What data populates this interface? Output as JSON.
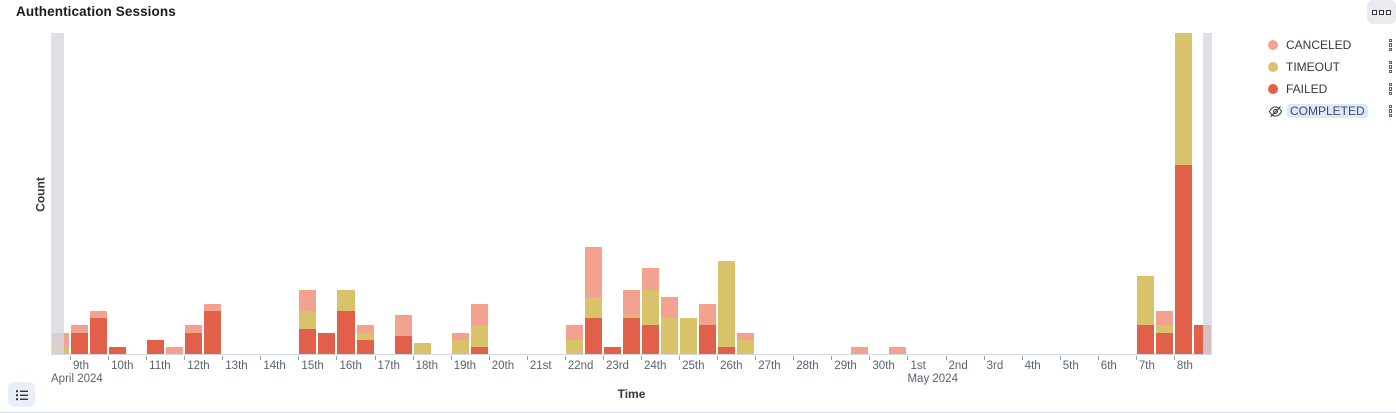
{
  "panel": {
    "title": "Authentication Sessions",
    "menu_icon": "boxes-horizontal-icon",
    "legend_toggle_icon": "list-icon"
  },
  "legend": {
    "items": [
      {
        "label": "CANCELED",
        "color": "#F2A28E",
        "hidden": false
      },
      {
        "label": "TIMEOUT",
        "color": "#D9C36A",
        "hidden": false
      },
      {
        "label": "FAILED",
        "color": "#E2604A",
        "hidden": false
      },
      {
        "label": "COMPLETED",
        "color": null,
        "hidden": true
      }
    ],
    "item_action_icon": "kebab-dots-icon",
    "hidden_item_icon": "eye-slash-icon",
    "hidden_highlight_color": "#DFE9F6"
  },
  "chart_data": {
    "type": "bar",
    "stacked": true,
    "title": "Authentication Sessions",
    "xlabel": "Time",
    "ylabel": "Count",
    "ylim": [
      0,
      90
    ],
    "grid": false,
    "legend_position": "right",
    "x_axis": {
      "origin": "2024-04-08 00:00",
      "start_day": 0.5,
      "end_day": 31,
      "bucket_interval_hours": 12
    },
    "series_colors": {
      "CANCELED": "#F2A28E",
      "TIMEOUT": "#D9C36A",
      "FAILED": "#E2604A"
    },
    "stack_order_bottom_to_top": [
      "FAILED",
      "TIMEOUT",
      "CANCELED"
    ],
    "partial_bucket_color": "#E0E1E6",
    "partial_markers": [
      {
        "from": 0.5,
        "to": 0.84
      },
      {
        "from": 30.76,
        "to": 31.0
      }
    ],
    "day_ticks": [
      {
        "t": 1,
        "label": "9th"
      },
      {
        "t": 2,
        "label": "10th"
      },
      {
        "t": 3,
        "label": "11th"
      },
      {
        "t": 4,
        "label": "12th"
      },
      {
        "t": 5,
        "label": "13th"
      },
      {
        "t": 6,
        "label": "14th"
      },
      {
        "t": 7,
        "label": "15th"
      },
      {
        "t": 8,
        "label": "16th"
      },
      {
        "t": 9,
        "label": "17th"
      },
      {
        "t": 10,
        "label": "18th"
      },
      {
        "t": 11,
        "label": "19th"
      },
      {
        "t": 12,
        "label": "20th"
      },
      {
        "t": 13,
        "label": "21st"
      },
      {
        "t": 14,
        "label": "22nd"
      },
      {
        "t": 15,
        "label": "23rd"
      },
      {
        "t": 16,
        "label": "24th"
      },
      {
        "t": 17,
        "label": "25th"
      },
      {
        "t": 18,
        "label": "26th"
      },
      {
        "t": 19,
        "label": "27th"
      },
      {
        "t": 20,
        "label": "28th"
      },
      {
        "t": 21,
        "label": "29th"
      },
      {
        "t": 22,
        "label": "30th"
      },
      {
        "t": 23,
        "label": "1st"
      },
      {
        "t": 24,
        "label": "2nd"
      },
      {
        "t": 25,
        "label": "3rd"
      },
      {
        "t": 26,
        "label": "4th"
      },
      {
        "t": 27,
        "label": "5th"
      },
      {
        "t": 28,
        "label": "6th"
      },
      {
        "t": 29,
        "label": "7th"
      },
      {
        "t": 30,
        "label": "8th"
      }
    ],
    "month_labels": [
      {
        "t": 0.5,
        "label": "April 2024"
      },
      {
        "t": 23,
        "label": "May 2024"
      }
    ],
    "buckets": [
      {
        "t": 0.5,
        "label": "Apr 8 12:00",
        "CANCELED": 4,
        "TIMEOUT": 2,
        "FAILED": 0,
        "partial": true
      },
      {
        "t": 1.0,
        "label": "Apr 9 00:00",
        "CANCELED": 2,
        "TIMEOUT": 0,
        "FAILED": 6
      },
      {
        "t": 1.5,
        "label": "Apr 9 12:00",
        "CANCELED": 2,
        "TIMEOUT": 0,
        "FAILED": 10
      },
      {
        "t": 2.0,
        "label": "Apr 10 00:00",
        "CANCELED": 0,
        "TIMEOUT": 0,
        "FAILED": 2
      },
      {
        "t": 3.0,
        "label": "Apr 11 00:00",
        "CANCELED": 0,
        "TIMEOUT": 0,
        "FAILED": 4
      },
      {
        "t": 3.5,
        "label": "Apr 11 12:00",
        "CANCELED": 2,
        "TIMEOUT": 0,
        "FAILED": 0
      },
      {
        "t": 4.0,
        "label": "Apr 12 00:00",
        "CANCELED": 2,
        "TIMEOUT": 0,
        "FAILED": 6
      },
      {
        "t": 4.5,
        "label": "Apr 12 12:00",
        "CANCELED": 2,
        "TIMEOUT": 0,
        "FAILED": 12
      },
      {
        "t": 7.0,
        "label": "Apr 15 00:00",
        "CANCELED": 6,
        "TIMEOUT": 5,
        "FAILED": 7
      },
      {
        "t": 7.5,
        "label": "Apr 15 12:00",
        "CANCELED": 0,
        "TIMEOUT": 0,
        "FAILED": 6
      },
      {
        "t": 8.0,
        "label": "Apr 16 00:00",
        "CANCELED": 0,
        "TIMEOUT": 6,
        "FAILED": 12
      },
      {
        "t": 8.5,
        "label": "Apr 16 12:00",
        "CANCELED": 2,
        "TIMEOUT": 2,
        "FAILED": 4
      },
      {
        "t": 9.5,
        "label": "Apr 17 12:00",
        "CANCELED": 6,
        "TIMEOUT": 0,
        "FAILED": 5
      },
      {
        "t": 10.0,
        "label": "Apr 18 00:00",
        "CANCELED": 0,
        "TIMEOUT": 3,
        "FAILED": 0
      },
      {
        "t": 11.0,
        "label": "Apr 19 00:00",
        "CANCELED": 2,
        "TIMEOUT": 4,
        "FAILED": 0
      },
      {
        "t": 11.5,
        "label": "Apr 19 12:00",
        "CANCELED": 6,
        "TIMEOUT": 6,
        "FAILED": 2
      },
      {
        "t": 14.0,
        "label": "Apr 22 00:00",
        "CANCELED": 4,
        "TIMEOUT": 4,
        "FAILED": 0
      },
      {
        "t": 14.5,
        "label": "Apr 22 12:00",
        "CANCELED": 14,
        "TIMEOUT": 6,
        "FAILED": 10
      },
      {
        "t": 15.0,
        "label": "Apr 23 00:00",
        "CANCELED": 0,
        "TIMEOUT": 0,
        "FAILED": 2
      },
      {
        "t": 15.5,
        "label": "Apr 23 12:00",
        "CANCELED": 7,
        "TIMEOUT": 1,
        "FAILED": 10
      },
      {
        "t": 16.0,
        "label": "Apr 24 00:00",
        "CANCELED": 6,
        "TIMEOUT": 10,
        "FAILED": 8
      },
      {
        "t": 16.5,
        "label": "Apr 24 12:00",
        "CANCELED": 6,
        "TIMEOUT": 10,
        "FAILED": 0
      },
      {
        "t": 17.0,
        "label": "Apr 25 00:00",
        "CANCELED": 0,
        "TIMEOUT": 10,
        "FAILED": 0
      },
      {
        "t": 17.5,
        "label": "Apr 25 12:00",
        "CANCELED": 6,
        "TIMEOUT": 0,
        "FAILED": 8
      },
      {
        "t": 18.0,
        "label": "Apr 26 00:00",
        "CANCELED": 0,
        "TIMEOUT": 24,
        "FAILED": 2
      },
      {
        "t": 18.5,
        "label": "Apr 26 12:00",
        "CANCELED": 2,
        "TIMEOUT": 4,
        "FAILED": 0
      },
      {
        "t": 21.5,
        "label": "Apr 29 12:00",
        "CANCELED": 2,
        "TIMEOUT": 0,
        "FAILED": 0
      },
      {
        "t": 22.5,
        "label": "Apr 30 12:00",
        "CANCELED": 2,
        "TIMEOUT": 0,
        "FAILED": 0
      },
      {
        "t": 29.0,
        "label": "May 7 00:00",
        "CANCELED": 0,
        "TIMEOUT": 14,
        "FAILED": 8
      },
      {
        "t": 29.5,
        "label": "May 7 12:00",
        "CANCELED": 4,
        "TIMEOUT": 2,
        "FAILED": 6
      },
      {
        "t": 30.0,
        "label": "May 8 00:00",
        "CANCELED": 0,
        "TIMEOUT": 37,
        "FAILED": 53
      },
      {
        "t": 30.5,
        "label": "May 8 12:00",
        "CANCELED": 0,
        "TIMEOUT": 0,
        "FAILED": 8,
        "partial": true
      }
    ]
  }
}
